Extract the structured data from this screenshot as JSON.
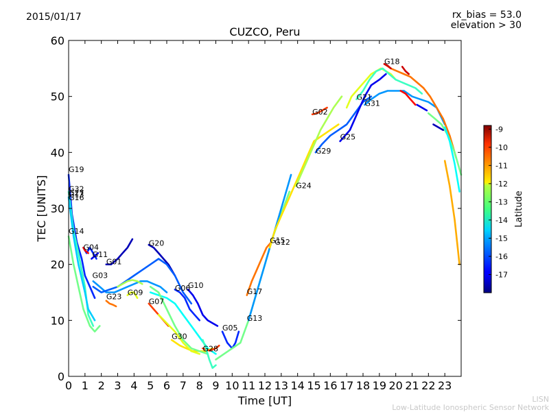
{
  "header": {
    "date": "2015/01/17",
    "rx_bias": "rx_bias = 53.0",
    "elevation": "elevation > 30"
  },
  "footer": {
    "line1": "LISN",
    "line2": "Low-Latitude Ionospheric Sensor Network"
  },
  "chart_data": {
    "type": "line",
    "title": "CUZCO, Peru",
    "xlabel": "Time [UT]",
    "ylabel": "TEC [UNITS]",
    "xlim": [
      0,
      24
    ],
    "ylim": [
      0,
      60
    ],
    "xticks": [
      "0",
      "1",
      "2",
      "3",
      "4",
      "5",
      "6",
      "7",
      "8",
      "9",
      "10",
      "11",
      "12",
      "13",
      "14",
      "15",
      "16",
      "17",
      "18",
      "19",
      "20",
      "21",
      "22",
      "23"
    ],
    "yticks": [
      "0",
      "10",
      "20",
      "30",
      "40",
      "50",
      "60"
    ],
    "colorbar": {
      "label": "Latitude",
      "range": [
        -18,
        -8.8
      ],
      "ticks": [
        "-9",
        "-10",
        "-11",
        "-12",
        "-13",
        "-14",
        "-15",
        "-16",
        "-17"
      ],
      "colormap": "jet"
    },
    "series_labels": [
      {
        "name": "G19",
        "x": 0.0,
        "y": 36.5
      },
      {
        "name": "G32",
        "x": 0.0,
        "y": 33.0
      },
      {
        "name": "G27",
        "x": 0.0,
        "y": 32.3
      },
      {
        "name": "G13",
        "x": 0.0,
        "y": 32.0
      },
      {
        "name": "G16",
        "x": 0.0,
        "y": 31.5
      },
      {
        "name": "G14",
        "x": 0.0,
        "y": 25.5
      },
      {
        "name": "G04",
        "x": 0.9,
        "y": 22.6
      },
      {
        "name": "G11",
        "x": 1.45,
        "y": 21.3
      },
      {
        "name": "G01",
        "x": 2.3,
        "y": 20.0
      },
      {
        "name": "G20",
        "x": 4.9,
        "y": 23.3
      },
      {
        "name": "G03",
        "x": 1.45,
        "y": 17.6
      },
      {
        "name": "G23",
        "x": 2.3,
        "y": 13.8
      },
      {
        "name": "G09",
        "x": 3.6,
        "y": 14.5
      },
      {
        "name": "G07",
        "x": 4.9,
        "y": 12.9
      },
      {
        "name": "G06",
        "x": 6.5,
        "y": 15.3
      },
      {
        "name": "G10",
        "x": 7.3,
        "y": 15.8
      },
      {
        "name": "G30",
        "x": 6.3,
        "y": 6.7
      },
      {
        "name": "G28",
        "x": 8.2,
        "y": 4.5
      },
      {
        "name": "G05",
        "x": 9.4,
        "y": 8.2
      },
      {
        "name": "G13",
        "x": 10.9,
        "y": 9.9
      },
      {
        "name": "G17",
        "x": 10.9,
        "y": 14.7
      },
      {
        "name": "G15",
        "x": 12.3,
        "y": 23.8
      },
      {
        "name": "G12",
        "x": 12.6,
        "y": 23.5
      },
      {
        "name": "G24",
        "x": 13.9,
        "y": 33.6
      },
      {
        "name": "G02",
        "x": 14.9,
        "y": 46.8
      },
      {
        "name": "G29",
        "x": 15.1,
        "y": 39.8
      },
      {
        "name": "G25",
        "x": 16.6,
        "y": 42.3
      },
      {
        "name": "G21",
        "x": 17.6,
        "y": 49.4
      },
      {
        "name": "G31",
        "x": 18.1,
        "y": 48.3
      },
      {
        "name": "G18",
        "x": 19.3,
        "y": 55.8
      }
    ],
    "series": [
      {
        "lat": -16.5,
        "x": [
          0,
          0.2,
          0.5,
          0.8,
          1.0,
          1.3,
          1.6
        ],
        "y": [
          36,
          29,
          24,
          21,
          18,
          16,
          14
        ]
      },
      {
        "lat": -14.0,
        "x": [
          0,
          0.3,
          0.6,
          1.0,
          1.2,
          1.5
        ],
        "y": [
          33,
          26,
          22,
          16,
          11,
          9
        ]
      },
      {
        "lat": -13.5,
        "x": [
          0,
          0.3,
          0.6,
          0.9,
          1.3,
          1.6,
          1.9
        ],
        "y": [
          25,
          20,
          16,
          12,
          9,
          8,
          9
        ]
      },
      {
        "lat": -15.0,
        "x": [
          0,
          0.3,
          0.6,
          1.0,
          1.2,
          1.6
        ],
        "y": [
          32,
          25,
          20,
          15,
          12,
          10
        ]
      },
      {
        "lat": -16.5,
        "x": [
          0.9,
          1.1,
          1.3,
          1.5,
          1.7
        ],
        "y": [
          23,
          22,
          23,
          22,
          21
        ]
      },
      {
        "lat": -10.0,
        "x": [
          0.9,
          1.0,
          1.2
        ],
        "y": [
          23,
          22.5,
          22
        ]
      },
      {
        "lat": -17.0,
        "x": [
          1.4,
          1.6,
          1.8
        ],
        "y": [
          21,
          21.5,
          22
        ]
      },
      {
        "lat": -17.5,
        "x": [
          2.3,
          2.6,
          3.0,
          3.3,
          3.6,
          3.9
        ],
        "y": [
          20,
          20,
          21,
          22,
          23,
          24.5
        ]
      },
      {
        "lat": -17.5,
        "x": [
          4.9,
          5.2,
          5.5,
          5.8,
          6.1,
          6.5
        ],
        "y": [
          23.5,
          23,
          22,
          21,
          20,
          18
        ]
      },
      {
        "lat": -15.5,
        "x": [
          1.5,
          1.9,
          2.3,
          2.8,
          3.2,
          3.6,
          4.0,
          4.4,
          4.8,
          5.2,
          5.6,
          6.0
        ],
        "y": [
          17,
          16,
          15,
          15,
          15.5,
          16,
          16.5,
          17,
          17,
          16.5,
          16,
          15
        ]
      },
      {
        "lat": -16.0,
        "x": [
          1.5,
          2.0,
          2.5,
          3.0,
          3.5,
          4.0,
          4.5,
          5.0,
          5.5,
          6.0,
          6.5,
          7.0,
          7.5
        ],
        "y": [
          16,
          15,
          15.5,
          16,
          17,
          18,
          19,
          20,
          21,
          20,
          18,
          15,
          13
        ]
      },
      {
        "lat": -11.0,
        "x": [
          2.3,
          2.5,
          2.7,
          2.9
        ],
        "y": [
          13.5,
          13,
          12.8,
          12.5
        ]
      },
      {
        "lat": -13.0,
        "x": [
          3.0,
          3.3,
          3.6,
          3.9,
          4.2,
          4.5
        ],
        "y": [
          16,
          16.5,
          17,
          17.2,
          17,
          16.5
        ]
      },
      {
        "lat": -12.5,
        "x": [
          3.6,
          3.8,
          4.0,
          4.2
        ],
        "y": [
          14.5,
          15,
          15,
          14
        ]
      },
      {
        "lat": -10.5,
        "x": [
          4.9,
          5.2,
          5.5,
          5.8,
          6.1
        ],
        "y": [
          13,
          12,
          11,
          10,
          9
        ]
      },
      {
        "lat": -14.5,
        "x": [
          5.0,
          5.5,
          6.0,
          6.5,
          7.0,
          7.5,
          8.0,
          8.5,
          9.0
        ],
        "y": [
          15,
          14.5,
          14,
          13,
          11,
          9,
          7,
          5,
          4
        ]
      },
      {
        "lat": -16.5,
        "x": [
          6.5,
          6.8,
          7.1,
          7.4,
          7.7,
          8.0
        ],
        "y": [
          15.5,
          15,
          14,
          12,
          11,
          10
        ]
      },
      {
        "lat": -17.0,
        "x": [
          7.3,
          7.6,
          7.9,
          8.2,
          8.5,
          8.8,
          9.1
        ],
        "y": [
          15.5,
          14.5,
          13,
          11,
          10,
          9.5,
          9
        ]
      },
      {
        "lat": -12.0,
        "x": [
          6.3,
          6.8,
          7.2,
          7.6,
          8.0,
          8.4,
          8.8
        ],
        "y": [
          6.5,
          5.5,
          5,
          4.5,
          4.5,
          4.5,
          5
        ]
      },
      {
        "lat": -12.5,
        "x": [
          5.5,
          6.0,
          6.5,
          7.0,
          7.5,
          8.0
        ],
        "y": [
          11,
          9.5,
          8,
          6,
          4.5,
          4
        ]
      },
      {
        "lat": -13.5,
        "x": [
          5.0,
          5.5,
          6.0,
          6.5,
          7.0,
          7.5,
          8.0,
          8.5
        ],
        "y": [
          16,
          15,
          12,
          9,
          6.5,
          5,
          4.5,
          4
        ]
      },
      {
        "lat": -10.5,
        "x": [
          8.2,
          8.4,
          8.6,
          8.8,
          9.0,
          9.2
        ],
        "y": [
          5,
          4.8,
          4.6,
          4.8,
          5,
          5.5
        ]
      },
      {
        "lat": -14.0,
        "x": [
          8.2,
          8.4,
          8.6,
          8.8,
          9.0
        ],
        "y": [
          6.5,
          5,
          3,
          1.5,
          2
        ]
      },
      {
        "lat": -16.5,
        "x": [
          9.4,
          9.7,
          10.0,
          10.2,
          10.4
        ],
        "y": [
          8,
          6,
          5,
          6,
          8
        ]
      },
      {
        "lat": -13.5,
        "x": [
          9.0,
          9.5,
          10.0,
          10.5,
          11.0,
          11.5,
          12.0,
          12.5,
          13.0,
          13.5
        ],
        "y": [
          3,
          4,
          5,
          6,
          10,
          15,
          20,
          25,
          29,
          33
        ]
      },
      {
        "lat": -15.5,
        "x": [
          11.0,
          11.3,
          11.6,
          12.0,
          12.4,
          12.8,
          13.2,
          13.6
        ],
        "y": [
          10,
          13,
          16,
          20,
          24,
          28,
          32,
          36
        ]
      },
      {
        "lat": -11.0,
        "x": [
          10.9,
          11.2,
          11.5,
          11.8,
          12.1,
          12.4
        ],
        "y": [
          14.5,
          17,
          19,
          21,
          23,
          24
        ]
      },
      {
        "lat": -12.0,
        "x": [
          12.3,
          12.6,
          12.9,
          13.2,
          13.5,
          13.8,
          14.1,
          14.4,
          14.7,
          15.0,
          15.5,
          16.0,
          16.5
        ],
        "y": [
          23,
          26,
          28,
          30,
          32,
          34,
          36,
          38,
          40,
          42,
          43,
          44,
          45
        ]
      },
      {
        "lat": -13.0,
        "x": [
          13.9,
          14.2,
          14.5,
          14.8,
          15.1,
          15.4,
          15.8,
          16.2,
          16.7
        ],
        "y": [
          34,
          36,
          38,
          40,
          42,
          44,
          46,
          48,
          50
        ]
      },
      {
        "lat": -10.5,
        "x": [
          14.9,
          15.2,
          15.5,
          15.8
        ],
        "y": [
          46.8,
          47,
          47.5,
          48
        ]
      },
      {
        "lat": -16.0,
        "x": [
          15.1,
          15.5,
          16.0,
          16.5,
          17.0,
          17.5,
          18.0,
          18.5
        ],
        "y": [
          40,
          41.5,
          43,
          44,
          45,
          47,
          49,
          50
        ]
      },
      {
        "lat": -17.0,
        "x": [
          16.6,
          16.9,
          17.2,
          17.5,
          17.8,
          18.1,
          18.5,
          19.0,
          19.4
        ],
        "y": [
          42,
          43,
          44,
          46,
          48,
          50,
          52,
          53,
          54
        ]
      },
      {
        "lat": -12.5,
        "x": [
          17.0,
          17.3,
          17.6,
          17.9,
          18.2,
          18.5,
          18.8,
          19.1,
          19.4,
          19.7,
          20.0
        ],
        "y": [
          48,
          50,
          51,
          52,
          53,
          54,
          54.5,
          55,
          54.5,
          54,
          53
        ]
      },
      {
        "lat": -14.0,
        "x": [
          17.6,
          18.0,
          18.4,
          18.8,
          19.2,
          19.6,
          20.0,
          20.4,
          20.8,
          21.2,
          21.6
        ],
        "y": [
          49.5,
          51,
          53,
          54.5,
          55,
          54,
          53,
          52.5,
          52,
          51.5,
          50.5
        ]
      },
      {
        "lat": -15.5,
        "x": [
          18.1,
          18.5,
          19.0,
          19.5,
          20.0,
          20.5,
          21.0,
          21.5,
          22.0,
          22.5,
          23.0
        ],
        "y": [
          48.5,
          49.5,
          50.5,
          51,
          51,
          51,
          50,
          49.5,
          49,
          48,
          45
        ]
      },
      {
        "lat": -11.0,
        "x": [
          19.3,
          19.7,
          20.1,
          20.5,
          20.9,
          21.3,
          21.7,
          22.1,
          22.5,
          22.9,
          23.3,
          23.7
        ],
        "y": [
          55.8,
          55,
          54.5,
          54,
          53.5,
          52.5,
          51.5,
          50,
          48,
          46,
          43,
          39
        ]
      },
      {
        "lat": -9.5,
        "x": [
          19.3,
          19.5,
          19.7
        ],
        "y": [
          55.8,
          55.5,
          55
        ]
      },
      {
        "lat": -9.5,
        "x": [
          20.4,
          20.6,
          20.8
        ],
        "y": [
          55.3,
          54.5,
          54
        ]
      },
      {
        "lat": -10.0,
        "x": [
          20.3,
          20.6,
          20.9,
          21.2
        ],
        "y": [
          51,
          50.5,
          49.5,
          48.5
        ]
      },
      {
        "lat": -17.0,
        "x": [
          21.3,
          21.6,
          21.9
        ],
        "y": [
          48.5,
          48,
          47.5
        ]
      },
      {
        "lat": -13.5,
        "x": [
          22.0,
          22.4,
          22.8,
          23.2,
          23.6,
          24.0
        ],
        "y": [
          47,
          46,
          45,
          43,
          40,
          36
        ]
      },
      {
        "lat": -17.5,
        "x": [
          22.3,
          22.6,
          22.9
        ],
        "y": [
          45,
          44.5,
          44
        ]
      },
      {
        "lat": -11.5,
        "x": [
          23.0,
          23.3,
          23.6,
          23.9
        ],
        "y": [
          38.5,
          34,
          28,
          20
        ]
      },
      {
        "lat": -14.5,
        "x": [
          23.0,
          23.3,
          23.6,
          23.9
        ],
        "y": [
          44.5,
          42,
          38,
          33
        ]
      }
    ]
  }
}
